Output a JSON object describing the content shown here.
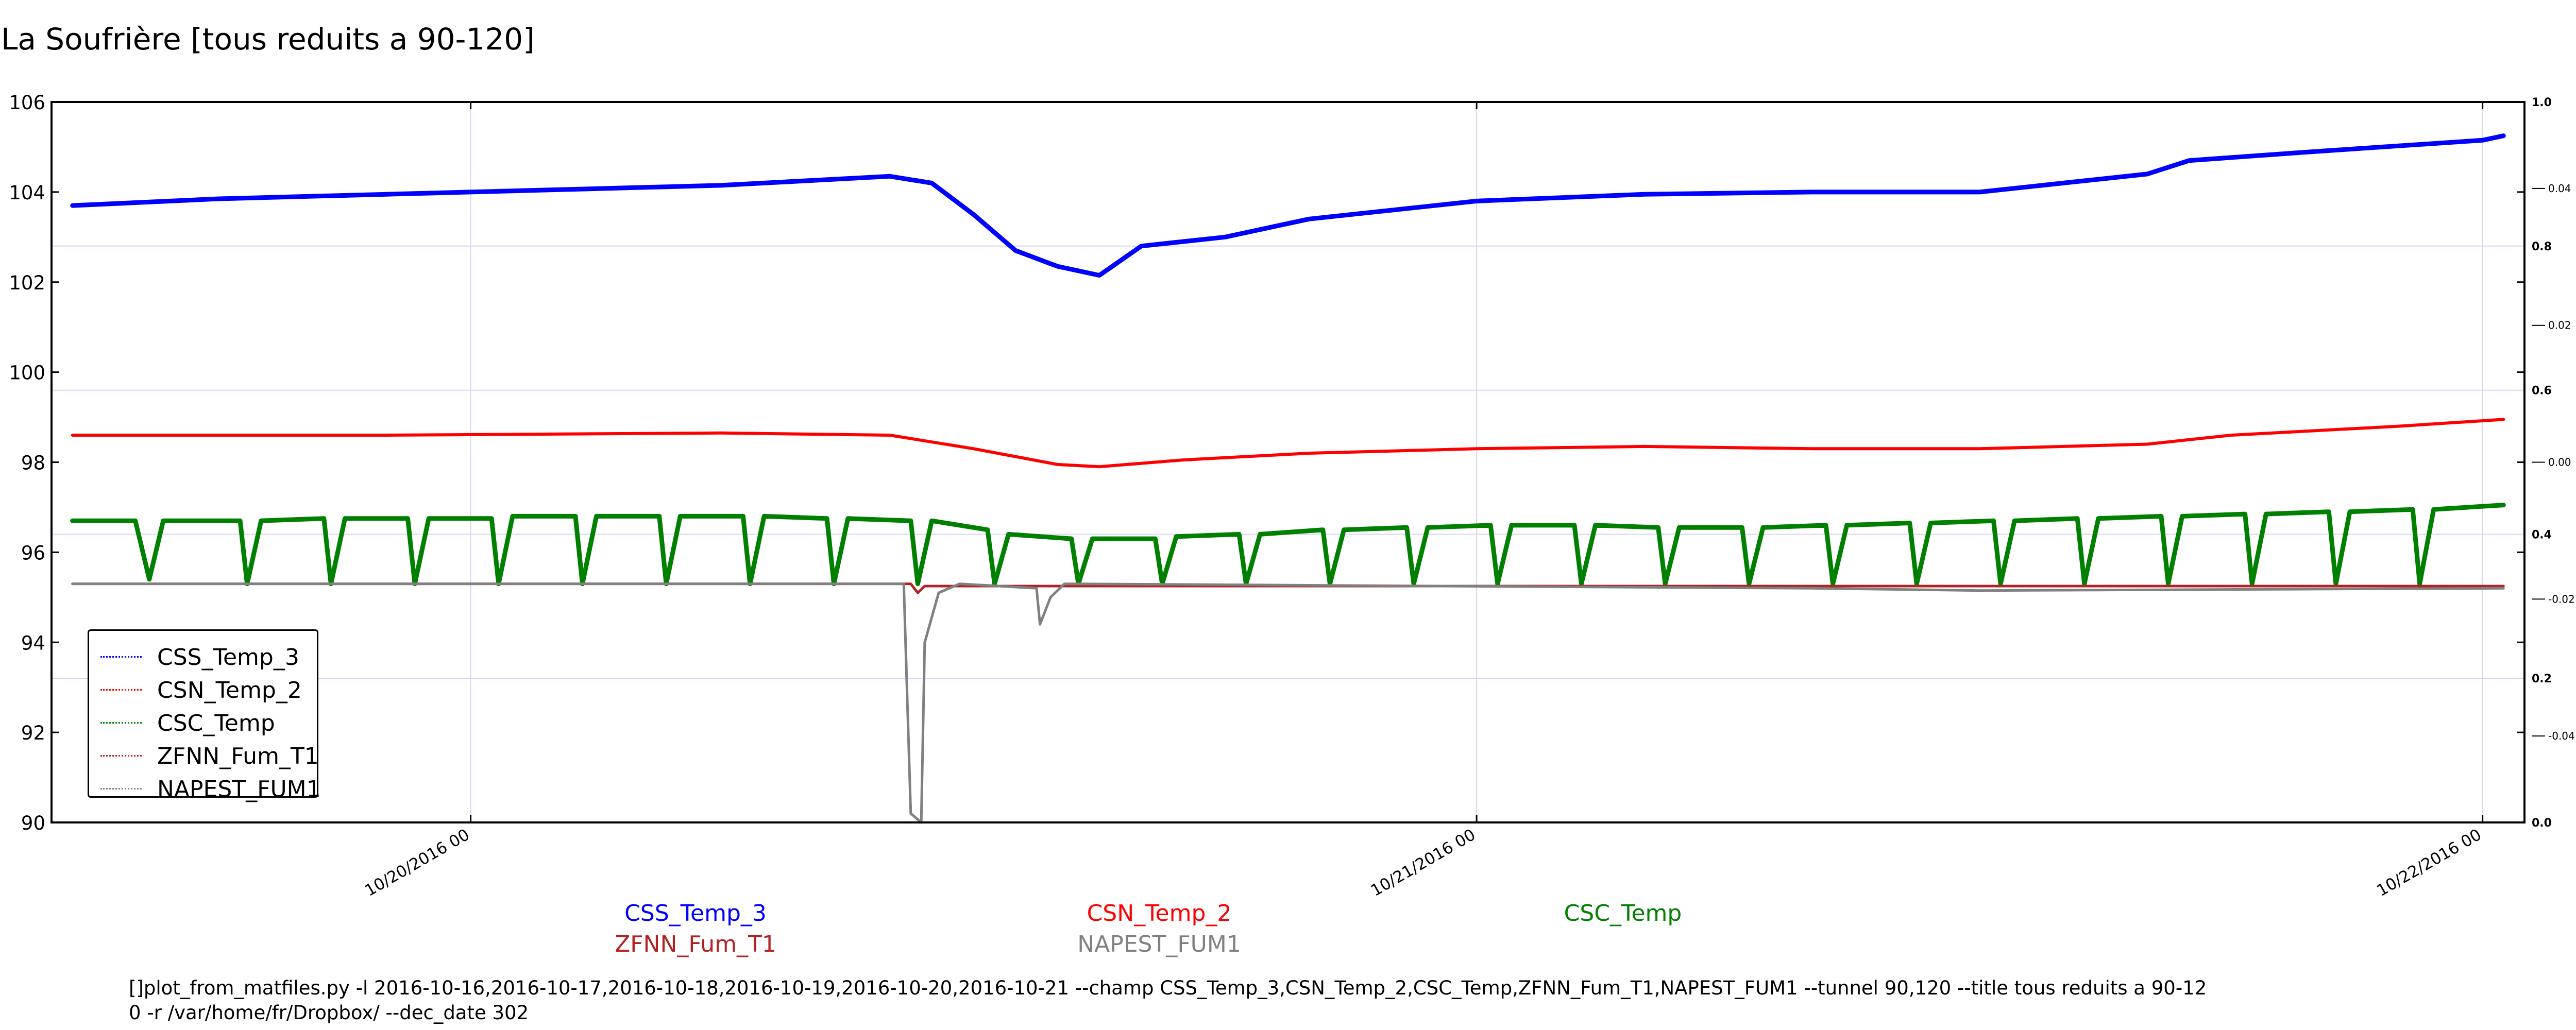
{
  "title": "La Soufrière [tous reduits a 90-120]",
  "chart_data": {
    "type": "line",
    "title": "La Soufrière [tous reduits a 90-120]",
    "xlabel": "",
    "ylabel": "",
    "x_ticks": [
      "10/20/2016 00",
      "10/21/2016 00",
      "10/22/2016 00"
    ],
    "xlim": [
      "2016-10-19 14:00",
      "2016-10-22 01:00"
    ],
    "ylim": [
      90,
      106
    ],
    "y_ticks": [
      90,
      92,
      94,
      96,
      98,
      100,
      102,
      104,
      106
    ],
    "right_axis_outer_ticks": [
      "0.0",
      "0.2",
      "0.4",
      "0.6",
      "0.8",
      "1.0"
    ],
    "right_axis_inner_ticks": [
      "-0.04",
      "-0.02",
      "0.00",
      "0.02",
      "0.04"
    ],
    "grid": true,
    "legend_position": "lower-left",
    "series": [
      {
        "name": "CSS_Temp_3",
        "color": "#0000ff",
        "x": [
          "2016-10-19 14:30",
          "2016-10-19 18:00",
          "2016-10-19 22:00",
          "2016-10-20 02:00",
          "2016-10-20 06:00",
          "2016-10-20 09:00",
          "2016-10-20 10:00",
          "2016-10-20 11:00",
          "2016-10-20 12:00",
          "2016-10-20 13:00",
          "2016-10-20 14:00",
          "2016-10-20 15:00",
          "2016-10-20 16:00",
          "2016-10-20 18:00",
          "2016-10-20 20:00",
          "2016-10-21 00:00",
          "2016-10-21 04:00",
          "2016-10-21 08:00",
          "2016-10-21 12:00",
          "2016-10-21 14:00",
          "2016-10-21 16:00",
          "2016-10-21 17:00",
          "2016-10-21 20:00",
          "2016-10-22 00:00",
          "2016-10-22 00:30"
        ],
        "values": [
          103.7,
          103.85,
          103.95,
          104.05,
          104.15,
          104.3,
          104.35,
          104.2,
          103.5,
          102.7,
          102.35,
          102.15,
          102.8,
          103.0,
          103.4,
          103.8,
          103.95,
          104.0,
          104.0,
          104.2,
          104.4,
          104.7,
          104.9,
          105.15,
          105.25
        ]
      },
      {
        "name": "CSN_Temp_2",
        "color": "#ff0000",
        "x": [
          "2016-10-19 14:30",
          "2016-10-19 22:00",
          "2016-10-20 06:00",
          "2016-10-20 10:00",
          "2016-10-20 12:00",
          "2016-10-20 14:00",
          "2016-10-20 15:00",
          "2016-10-20 17:00",
          "2016-10-20 20:00",
          "2016-10-21 00:00",
          "2016-10-21 04:00",
          "2016-10-21 08:00",
          "2016-10-21 12:00",
          "2016-10-21 16:00",
          "2016-10-21 18:00",
          "2016-10-21 22:00",
          "2016-10-22 00:30"
        ],
        "values": [
          98.6,
          98.6,
          98.65,
          98.6,
          98.3,
          97.95,
          97.9,
          98.05,
          98.2,
          98.3,
          98.35,
          98.3,
          98.3,
          98.4,
          98.6,
          98.8,
          98.95
        ]
      },
      {
        "name": "CSC_Temp",
        "color": "#008000",
        "x": [
          "2016-10-19 14:30",
          "2016-10-19 16:00",
          "2016-10-19 16:20",
          "2016-10-19 16:40",
          "2016-10-19 18:30",
          "2016-10-19 18:40",
          "2016-10-19 19:00",
          "2016-10-19 20:30",
          "2016-10-19 20:40",
          "2016-10-19 21:00",
          "2016-10-19 22:30",
          "2016-10-19 22:40",
          "2016-10-19 23:00",
          "2016-10-20 00:30",
          "2016-10-20 00:40",
          "2016-10-20 01:00",
          "2016-10-20 02:30",
          "2016-10-20 02:40",
          "2016-10-20 03:00",
          "2016-10-20 04:30",
          "2016-10-20 04:40",
          "2016-10-20 05:00",
          "2016-10-20 06:30",
          "2016-10-20 06:40",
          "2016-10-20 07:00",
          "2016-10-20 08:30",
          "2016-10-20 08:40",
          "2016-10-20 09:00",
          "2016-10-20 10:30",
          "2016-10-20 10:40",
          "2016-10-20 11:00",
          "2016-10-20 12:20",
          "2016-10-20 12:30",
          "2016-10-20 12:50",
          "2016-10-20 14:20",
          "2016-10-20 14:30",
          "2016-10-20 14:50",
          "2016-10-20 16:20",
          "2016-10-20 16:30",
          "2016-10-20 16:50",
          "2016-10-20 18:20",
          "2016-10-20 18:30",
          "2016-10-20 18:50",
          "2016-10-20 20:20",
          "2016-10-20 20:30",
          "2016-10-20 20:50",
          "2016-10-20 22:20",
          "2016-10-20 22:30",
          "2016-10-20 22:50",
          "2016-10-21 00:20",
          "2016-10-21 00:30",
          "2016-10-21 00:50",
          "2016-10-21 02:20",
          "2016-10-21 02:30",
          "2016-10-21 02:50",
          "2016-10-21 04:20",
          "2016-10-21 04:30",
          "2016-10-21 04:50",
          "2016-10-21 06:20",
          "2016-10-21 06:30",
          "2016-10-21 06:50",
          "2016-10-21 08:20",
          "2016-10-21 08:30",
          "2016-10-21 08:50",
          "2016-10-21 10:20",
          "2016-10-21 10:30",
          "2016-10-21 10:50",
          "2016-10-21 12:20",
          "2016-10-21 12:30",
          "2016-10-21 12:50",
          "2016-10-21 14:20",
          "2016-10-21 14:30",
          "2016-10-21 14:50",
          "2016-10-21 16:20",
          "2016-10-21 16:30",
          "2016-10-21 16:50",
          "2016-10-21 18:20",
          "2016-10-21 18:30",
          "2016-10-21 18:50",
          "2016-10-21 20:20",
          "2016-10-21 20:30",
          "2016-10-21 20:50",
          "2016-10-21 22:20",
          "2016-10-21 22:30",
          "2016-10-21 22:50",
          "2016-10-22 00:30"
        ],
        "values": [
          96.7,
          96.7,
          95.4,
          96.7,
          96.7,
          95.3,
          96.7,
          96.75,
          95.3,
          96.75,
          96.75,
          95.3,
          96.75,
          96.75,
          95.3,
          96.8,
          96.8,
          95.3,
          96.8,
          96.8,
          95.3,
          96.8,
          96.8,
          95.3,
          96.8,
          96.75,
          95.3,
          96.75,
          96.7,
          95.3,
          96.7,
          96.5,
          95.3,
          96.4,
          96.3,
          95.3,
          96.3,
          96.3,
          95.3,
          96.35,
          96.4,
          95.3,
          96.4,
          96.5,
          95.3,
          96.5,
          96.55,
          95.3,
          96.55,
          96.6,
          95.3,
          96.6,
          96.6,
          95.3,
          96.6,
          96.55,
          95.3,
          96.55,
          96.55,
          95.3,
          96.55,
          96.6,
          95.3,
          96.6,
          96.65,
          95.3,
          96.65,
          96.7,
          95.3,
          96.7,
          96.75,
          95.3,
          96.75,
          96.8,
          95.3,
          96.8,
          96.85,
          95.3,
          96.85,
          96.9,
          95.3,
          96.9,
          96.95,
          95.3,
          96.95,
          97.05
        ]
      },
      {
        "name": "ZFNN_Fum_T1",
        "color": "#b22222",
        "x": [
          "2016-10-19 14:30",
          "2016-10-20 10:30",
          "2016-10-20 10:40",
          "2016-10-20 10:50",
          "2016-10-21 12:00",
          "2016-10-22 00:30"
        ],
        "values": [
          95.3,
          95.3,
          95.1,
          95.25,
          95.25,
          95.25
        ]
      },
      {
        "name": "NAPEST_FUM1",
        "color": "#808080",
        "x": [
          "2016-10-19 14:30",
          "2016-10-20 10:20",
          "2016-10-20 10:30",
          "2016-10-20 10:45",
          "2016-10-20 10:50",
          "2016-10-20 11:10",
          "2016-10-20 11:40",
          "2016-10-20 13:30",
          "2016-10-20 13:35",
          "2016-10-20 13:50",
          "2016-10-20 14:10",
          "2016-10-21 08:00",
          "2016-10-21 12:00",
          "2016-10-22 00:30"
        ],
        "values": [
          95.3,
          95.3,
          90.2,
          90.0,
          94.0,
          95.1,
          95.3,
          95.2,
          94.4,
          95.0,
          95.3,
          95.2,
          95.15,
          95.2
        ]
      }
    ]
  },
  "series_labels": {
    "css": "CSS_Temp_3",
    "csn": "CSN_Temp_2",
    "csc": "CSC_Temp",
    "zfnn": "ZFNN_Fum_T1",
    "napest": "NAPEST_FUM1"
  },
  "command_line": "[]plot_from_matfiles.py -l 2016-10-16,2016-10-17,2016-10-18,2016-10-19,2016-10-20,2016-10-21 --champ CSS_Temp_3,CSN_Temp_2,CSC_Temp,ZFNN_Fum_T1,NAPEST_FUM1 --tunnel 90,120 --title tous reduits a 90-12\n0 -r /var/home/fr/Dropbox/ --dec_date 302"
}
